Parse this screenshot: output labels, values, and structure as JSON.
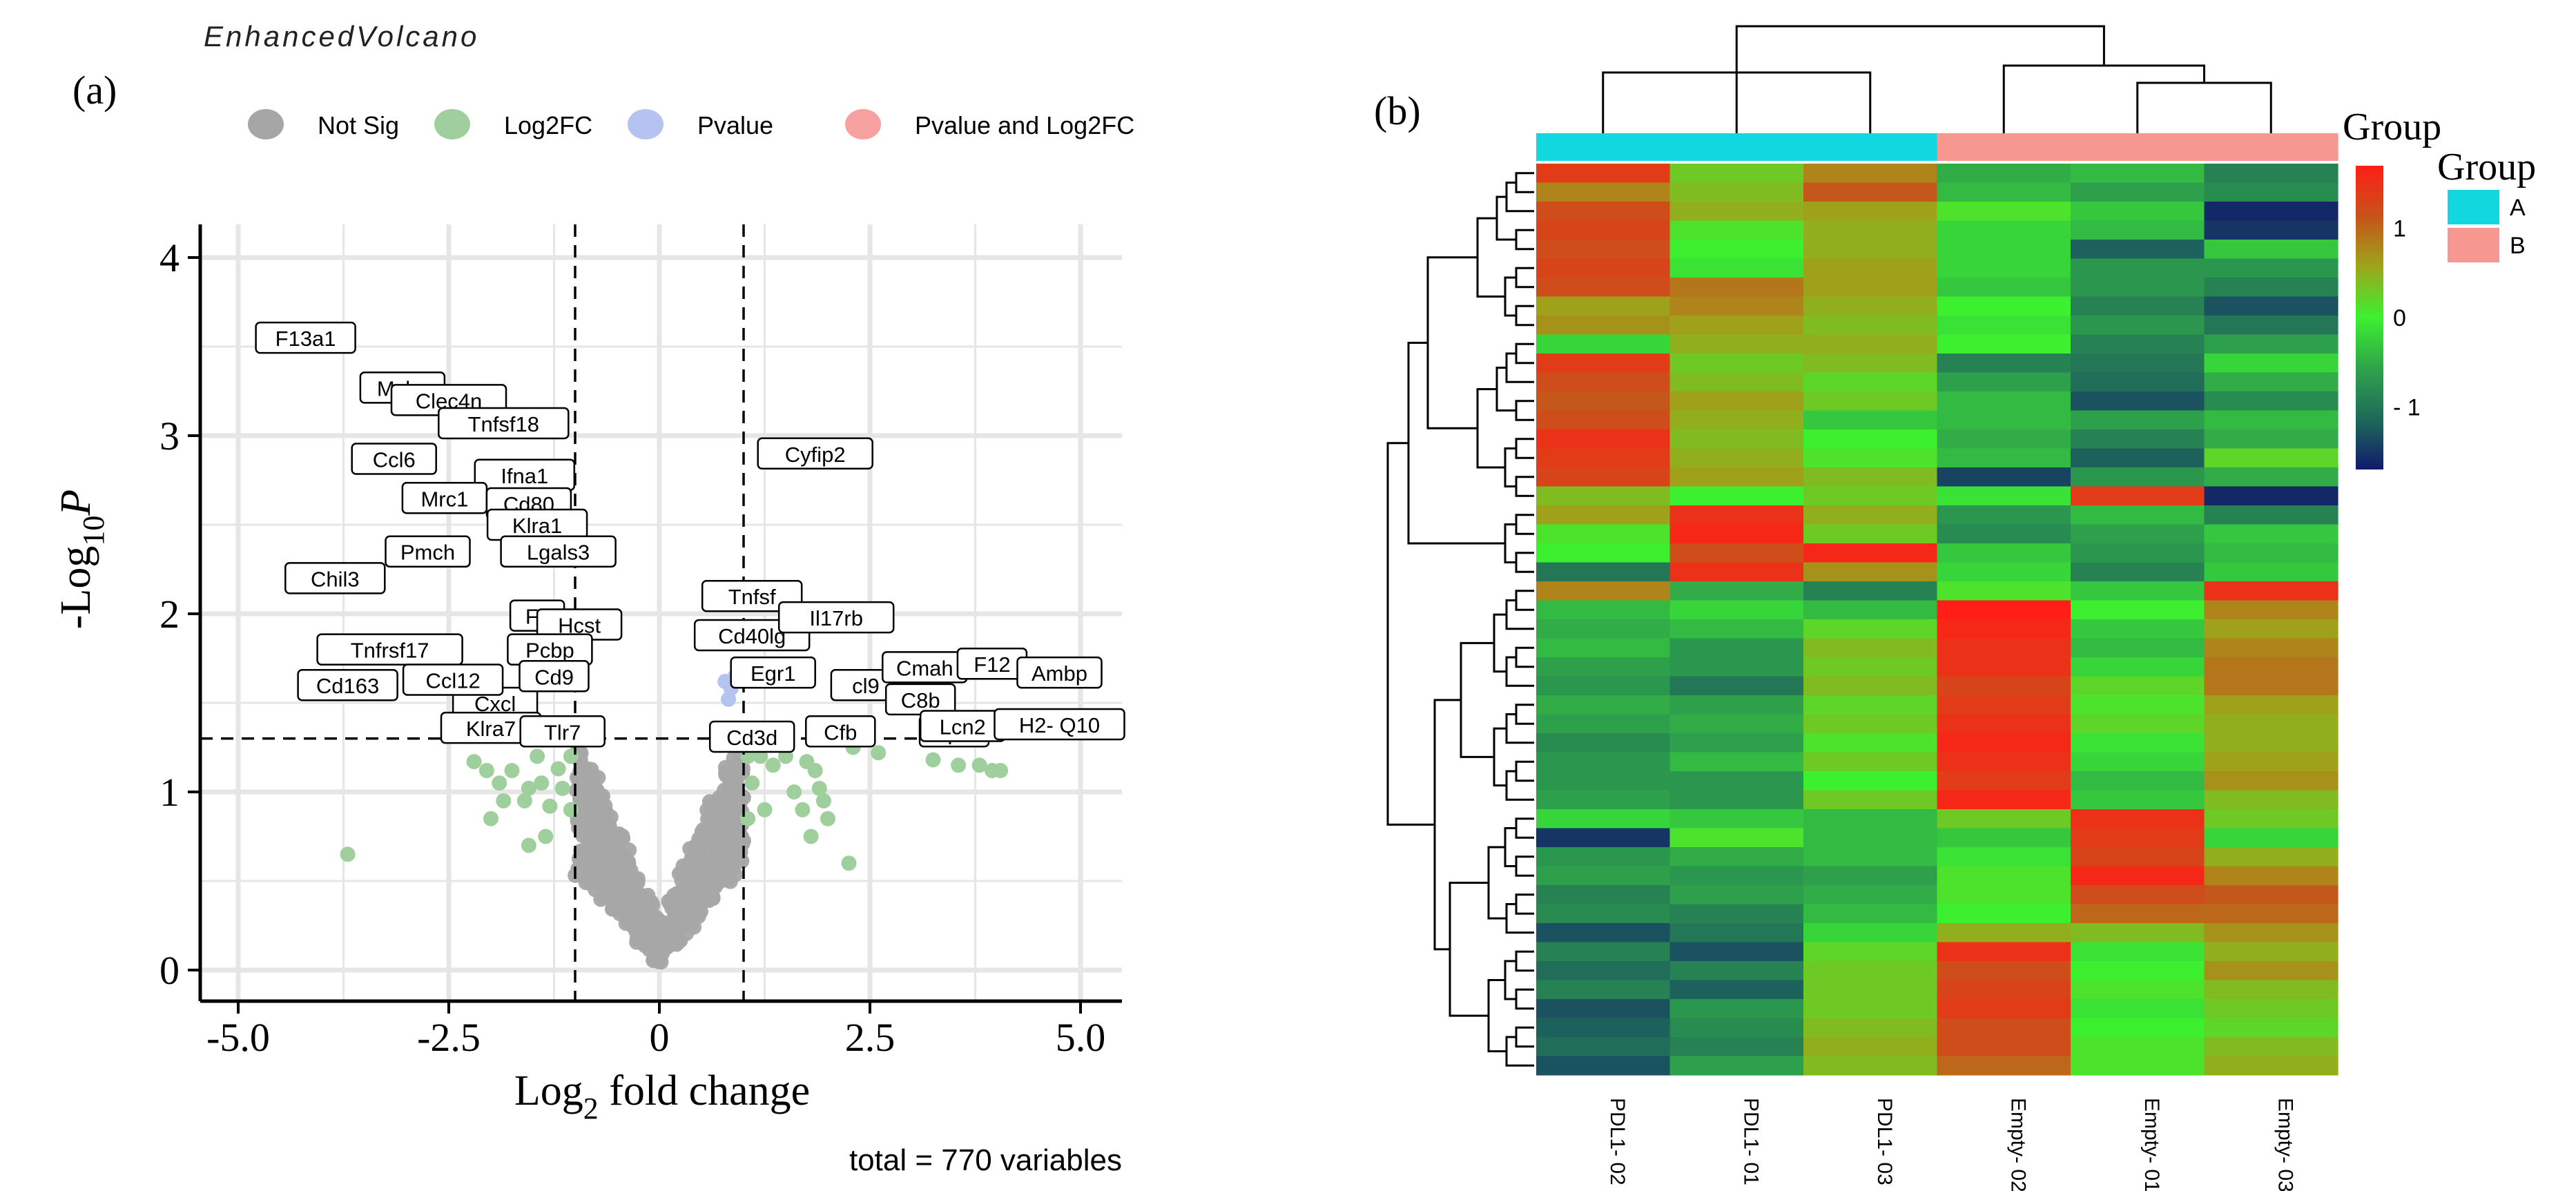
{
  "chart_data": [
    {
      "type": "scatter",
      "panel_label": "(a)",
      "title": "EnhancedVolcano",
      "xlabel": "Log",
      "xlabel_sub": "2",
      "xlabel_rest": " fold change",
      "ylabel": "-Log",
      "ylabel_sub": "10",
      "ylabel_rest": "P",
      "caption": "total = 770 variables",
      "xlim": [
        -5.5,
        5.5
      ],
      "ylim": [
        0,
        4.2
      ],
      "x_ticks": [
        "-5.0",
        "-2.5",
        "0",
        "2.5",
        "5.0"
      ],
      "y_ticks": [
        "0",
        "1",
        "2",
        "3",
        "4"
      ],
      "fc_cutoff": 1.0,
      "p_cutoff": 1.3,
      "grid": true,
      "legend": {
        "position": "top",
        "items": [
          {
            "label": "Not Sig",
            "color": "#a6a6a6"
          },
          {
            "label": "Log2FC",
            "color": "#9fcf9c"
          },
          {
            "label": "Pvalue",
            "color": "#b4c3f0"
          },
          {
            "label": "Pvalue and Log2FC",
            "color": "#f6a0a0"
          }
        ]
      },
      "labeled_genes": [
        {
          "label": "F13a1",
          "x": -4.2,
          "y": 3.55
        },
        {
          "label": "Mslm",
          "x": -3.05,
          "y": 3.27
        },
        {
          "label": "Clec4n",
          "x": -2.5,
          "y": 3.2
        },
        {
          "label": "Tnfsf18",
          "x": -1.85,
          "y": 3.07
        },
        {
          "label": "Ccl6",
          "x": -3.15,
          "y": 2.87
        },
        {
          "label": "Ifna1",
          "x": -1.6,
          "y": 2.78
        },
        {
          "label": "Mrc1",
          "x": -2.55,
          "y": 2.65
        },
        {
          "label": "Cd80",
          "x": -1.55,
          "y": 2.62
        },
        {
          "label": "Klra1",
          "x": -1.45,
          "y": 2.5
        },
        {
          "label": "Pmch",
          "x": -2.75,
          "y": 2.35
        },
        {
          "label": "Lgals3",
          "x": -1.2,
          "y": 2.35
        },
        {
          "label": "Chil3",
          "x": -3.85,
          "y": 2.2
        },
        {
          "label": "Tnfrsf17",
          "x": -3.2,
          "y": 1.8
        },
        {
          "label": "Cd9",
          "x": -1.25,
          "y": 1.65
        },
        {
          "label": "Cd163",
          "x": -3.7,
          "y": 1.6
        },
        {
          "label": "Ccl12",
          "x": -2.45,
          "y": 1.63
        },
        {
          "label": "Klra7",
          "x": -2.0,
          "y": 1.36
        },
        {
          "label": "Tlr7",
          "x": -1.15,
          "y": 1.34
        },
        {
          "label": "Cyfip2",
          "x": 1.85,
          "y": 2.9
        },
        {
          "label": "Tnfsf",
          "x": 1.1,
          "y": 2.1
        },
        {
          "label": "Il17rb",
          "x": 2.1,
          "y": 1.98
        },
        {
          "label": "Egr1",
          "x": 1.35,
          "y": 1.67
        },
        {
          "label": "Cmah",
          "x": 3.15,
          "y": 1.7
        },
        {
          "label": "F12",
          "x": 3.95,
          "y": 1.72
        },
        {
          "label": "Ambp",
          "x": 4.75,
          "y": 1.67
        },
        {
          "label": "C8b",
          "x": 3.1,
          "y": 1.52
        },
        {
          "label": "Lcn2",
          "x": 3.6,
          "y": 1.37
        },
        {
          "label": "H2- Q10",
          "x": 4.75,
          "y": 1.38
        },
        {
          "label": "Cfb",
          "x": 2.15,
          "y": 1.34
        },
        {
          "label": "Cd3d",
          "x": 1.1,
          "y": 1.31
        }
      ],
      "partial_labels": [
        {
          "label": "Fc",
          "x": -1.45,
          "y": 1.99
        },
        {
          "label": "Hcst",
          "x": -0.95,
          "y": 1.94
        },
        {
          "label": "Pcbp",
          "x": -1.3,
          "y": 1.8
        },
        {
          "label": "Cxcl",
          "x": -1.95,
          "y": 1.5
        },
        {
          "label": "cl9",
          "x": 2.45,
          "y": 1.6
        },
        {
          "label": "sp2",
          "x": 3.5,
          "y": 1.34
        },
        {
          "label": "Cd40lg",
          "x": 1.1,
          "y": 1.88
        }
      ],
      "colored_points": {
        "Log2FC": [
          [
            -3.7,
            0.65
          ],
          [
            -2.2,
            1.17
          ],
          [
            -2.05,
            1.12
          ],
          [
            -1.9,
            1.05
          ],
          [
            -1.75,
            1.12
          ],
          [
            -1.6,
            0.95
          ],
          [
            -1.55,
            1.02
          ],
          [
            -1.45,
            1.2
          ],
          [
            -1.4,
            1.05
          ],
          [
            -1.35,
            0.75
          ],
          [
            -1.3,
            0.92
          ],
          [
            -1.2,
            1.13
          ],
          [
            -1.15,
            1.02
          ],
          [
            -1.05,
            1.2
          ],
          [
            -1.05,
            0.9
          ],
          [
            -2.0,
            0.85
          ],
          [
            -1.85,
            0.95
          ],
          [
            -1.55,
            0.7
          ],
          [
            1.05,
            1.2
          ],
          [
            1.05,
            0.85
          ],
          [
            1.1,
            1.05
          ],
          [
            1.2,
            1.2
          ],
          [
            1.25,
            0.9
          ],
          [
            1.35,
            1.15
          ],
          [
            1.5,
            1.2
          ],
          [
            1.6,
            1.0
          ],
          [
            1.7,
            0.9
          ],
          [
            1.75,
            1.17
          ],
          [
            1.8,
            0.75
          ],
          [
            1.85,
            1.12
          ],
          [
            1.9,
            1.02
          ],
          [
            1.95,
            0.95
          ],
          [
            2.0,
            0.85
          ],
          [
            2.3,
            1.25
          ],
          [
            2.25,
            0.6
          ],
          [
            2.6,
            1.22
          ],
          [
            3.25,
            1.18
          ],
          [
            3.55,
            1.15
          ],
          [
            3.8,
            1.15
          ],
          [
            3.95,
            1.12
          ],
          [
            4.05,
            1.12
          ]
        ],
        "Pvalue": [
          [
            0.78,
            1.62
          ],
          [
            0.85,
            1.58
          ],
          [
            0.9,
            1.65
          ],
          [
            0.82,
            1.52
          ]
        ]
      }
    },
    {
      "type": "heatmap",
      "panel_label": "(b)",
      "columns": [
        "PDL1- 02",
        "PDL1- 01",
        "PDL1- 03",
        "Empty- 02",
        "Empty- 01",
        "Empty- 03"
      ],
      "column_groups": [
        "A",
        "A",
        "A",
        "B",
        "B",
        "B"
      ],
      "group_legend_title": "Group",
      "group_legend": [
        {
          "label": "A",
          "color": "#13d7df"
        },
        {
          "label": "B",
          "color": "#f79890"
        }
      ],
      "colorbar_title": "Group",
      "colorbar_ticks": [
        "1",
        "0",
        "- 1"
      ],
      "colorbar_tick_values": [
        1,
        0,
        -1
      ],
      "color_range": [
        -1.7,
        1.7
      ],
      "color_stops": [
        "#101a6a",
        "#1f6a5a",
        "#2fa34a",
        "#3cf030",
        "#9ca61b",
        "#c7531a",
        "#ff1f16"
      ],
      "values": [
        [
          1.4,
          0.3,
          0.8,
          -0.5,
          -0.4,
          -0.9
        ],
        [
          0.8,
          0.4,
          1.1,
          -0.4,
          -0.6,
          -0.8
        ],
        [
          1.2,
          0.5,
          0.6,
          0.1,
          -0.3,
          -1.6
        ],
        [
          1.3,
          0.1,
          0.5,
          -0.2,
          -0.4,
          -1.5
        ],
        [
          1.2,
          0.0,
          0.5,
          -0.2,
          -1.2,
          -0.3
        ],
        [
          1.3,
          -0.1,
          0.6,
          -0.2,
          -0.7,
          -0.7
        ],
        [
          1.2,
          0.9,
          0.6,
          -0.3,
          -0.7,
          -0.9
        ],
        [
          0.6,
          0.8,
          0.5,
          0.0,
          -0.9,
          -1.3
        ],
        [
          0.7,
          0.6,
          0.4,
          -0.1,
          -0.7,
          -1.0
        ],
        [
          -0.2,
          0.5,
          0.5,
          0.0,
          -0.9,
          -0.6
        ],
        [
          1.4,
          0.3,
          0.4,
          -0.9,
          -1.0,
          -0.2
        ],
        [
          1.2,
          0.4,
          0.2,
          -0.6,
          -1.1,
          -0.5
        ],
        [
          1.1,
          0.6,
          0.3,
          -0.4,
          -1.3,
          -0.8
        ],
        [
          1.2,
          0.5,
          -0.3,
          -0.4,
          -0.6,
          -0.4
        ],
        [
          1.5,
          0.4,
          0.0,
          -0.5,
          -0.9,
          -0.5
        ],
        [
          1.4,
          0.5,
          0.1,
          -0.4,
          -1.2,
          0.2
        ],
        [
          1.3,
          0.6,
          0.4,
          -1.4,
          -0.7,
          -0.5
        ],
        [
          0.4,
          0.0,
          0.3,
          -0.1,
          1.4,
          -1.6
        ],
        [
          0.6,
          1.5,
          0.5,
          -0.7,
          -0.4,
          -0.9
        ],
        [
          0.1,
          1.6,
          0.3,
          -0.8,
          -0.6,
          -0.3
        ],
        [
          0.0,
          1.2,
          1.6,
          -0.3,
          -0.7,
          -0.4
        ],
        [
          -1.0,
          1.5,
          0.7,
          -0.2,
          -0.9,
          -0.3
        ],
        [
          0.8,
          -0.5,
          -0.9,
          0.1,
          -0.3,
          1.5
        ],
        [
          -0.4,
          -0.2,
          -0.4,
          1.7,
          0.0,
          0.8
        ],
        [
          -0.5,
          -0.4,
          0.2,
          1.6,
          -0.3,
          0.6
        ],
        [
          -0.4,
          -0.7,
          0.4,
          1.5,
          -0.4,
          0.8
        ],
        [
          -0.6,
          -0.7,
          0.3,
          1.5,
          -0.2,
          0.9
        ],
        [
          -0.7,
          -1.0,
          0.4,
          1.3,
          0.2,
          0.9
        ],
        [
          -0.5,
          -0.6,
          0.2,
          1.4,
          0.1,
          0.6
        ],
        [
          -0.6,
          -0.5,
          0.3,
          1.5,
          0.2,
          0.5
        ],
        [
          -0.8,
          -0.6,
          0.1,
          1.6,
          -0.1,
          0.5
        ],
        [
          -0.7,
          -0.4,
          0.3,
          1.5,
          -0.2,
          0.6
        ],
        [
          -0.7,
          -0.7,
          0.0,
          1.4,
          -0.4,
          0.7
        ],
        [
          -0.6,
          -0.7,
          0.3,
          1.6,
          -0.3,
          0.4
        ],
        [
          -0.2,
          -0.3,
          -0.4,
          0.3,
          1.5,
          0.3
        ],
        [
          -1.5,
          0.1,
          -0.4,
          -0.3,
          1.4,
          -0.2
        ],
        [
          -0.7,
          -0.5,
          -0.4,
          -0.1,
          1.3,
          0.5
        ],
        [
          -0.6,
          -0.7,
          -0.6,
          0.1,
          1.6,
          0.8
        ],
        [
          -0.9,
          -0.6,
          -0.5,
          0.1,
          1.2,
          1.1
        ],
        [
          -0.8,
          -0.9,
          -0.4,
          0.0,
          1.0,
          1.0
        ],
        [
          -1.3,
          -1.0,
          -0.2,
          0.5,
          0.4,
          0.7
        ],
        [
          -0.9,
          -1.3,
          0.2,
          1.5,
          -0.1,
          0.5
        ],
        [
          -1.1,
          -0.9,
          0.3,
          1.2,
          0.0,
          0.7
        ],
        [
          -0.9,
          -1.2,
          0.3,
          1.3,
          0.1,
          0.4
        ],
        [
          -1.3,
          -0.7,
          0.3,
          1.4,
          -0.1,
          0.3
        ],
        [
          -1.2,
          -0.8,
          0.4,
          1.2,
          0.0,
          0.2
        ],
        [
          -1.1,
          -0.9,
          0.5,
          1.2,
          0.1,
          0.4
        ],
        [
          -1.3,
          -0.6,
          0.4,
          1.0,
          0.1,
          0.5
        ]
      ]
    }
  ]
}
